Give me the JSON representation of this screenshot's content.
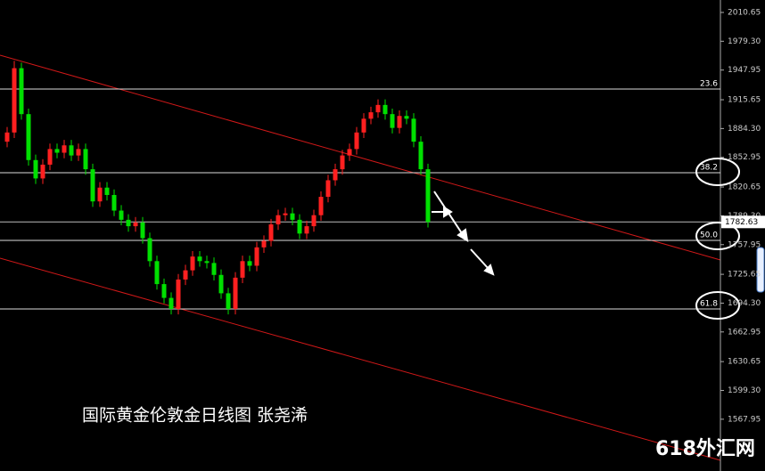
{
  "chart_data": {
    "type": "candlestick",
    "title": "国际黄金伦敦金日线图 张尧浠",
    "watermark": "618外汇网",
    "colors": {
      "up": "#ff2020",
      "down": "#00e000"
    },
    "ylim": [
      1511.6,
      2024.2
    ],
    "yticks": [
      2010.65,
      {
        "value": 1979.3,
        "label": "1979.30"
      },
      1947.95,
      1915.65,
      {
        "value": 1884.3,
        "label": "1884.30"
      },
      1852.95,
      1820.65,
      {
        "value": 1789.3,
        "label": "1789.30"
      },
      1757.95,
      1725.65,
      {
        "value": 1694.3,
        "label": "1694.30"
      },
      1662.95,
      1630.65,
      {
        "value": 1599.3,
        "label": "1599.30"
      },
      1567.95
    ],
    "fib_levels": [
      {
        "value": 1927.3,
        "label": "23.6"
      },
      {
        "value": 1836.2,
        "label": "38.2"
      },
      {
        "value": 1762.6,
        "label": "50.0"
      },
      {
        "value": 1688.0,
        "label": "61.8"
      }
    ],
    "last_price": {
      "value": 1782.63,
      "label": "1782.63"
    },
    "open": [
      1870,
      1880,
      1950,
      1900,
      1850,
      1830,
      1845,
      1862,
      1858,
      1866,
      1855,
      1862,
      1840,
      1805,
      1820,
      1812,
      1795,
      1785,
      1778,
      1782,
      1765,
      1740,
      1715,
      1700,
      1688,
      1720,
      1730,
      1745,
      1740,
      1738,
      1725,
      1705,
      1688,
      1722,
      1740,
      1735,
      1755,
      1762,
      1780,
      1790,
      1792,
      1785,
      1770,
      1778,
      1790,
      1810,
      1828,
      1840,
      1855,
      1862,
      1880,
      1895,
      1902,
      1910,
      1900,
      1885,
      1898,
      1895,
      1870,
      1840
    ],
    "high": [
      1886,
      1958,
      1956,
      1906,
      1856,
      1851,
      1868,
      1868,
      1872,
      1872,
      1868,
      1868,
      1846,
      1826,
      1826,
      1818,
      1801,
      1791,
      1788,
      1788,
      1771,
      1746,
      1721,
      1706,
      1726,
      1736,
      1751,
      1751,
      1746,
      1744,
      1731,
      1711,
      1728,
      1746,
      1746,
      1761,
      1768,
      1786,
      1796,
      1798,
      1798,
      1791,
      1784,
      1796,
      1816,
      1834,
      1846,
      1861,
      1868,
      1886,
      1901,
      1908,
      1916,
      1916,
      1906,
      1904,
      1904,
      1901,
      1876,
      1846
    ],
    "low": [
      1864,
      1874,
      1894,
      1844,
      1824,
      1824,
      1839,
      1852,
      1852,
      1849,
      1849,
      1834,
      1799,
      1799,
      1806,
      1789,
      1779,
      1772,
      1772,
      1759,
      1734,
      1709,
      1694,
      1682,
      1682,
      1714,
      1724,
      1734,
      1732,
      1719,
      1699,
      1682,
      1682,
      1716,
      1729,
      1729,
      1749,
      1756,
      1774,
      1784,
      1779,
      1764,
      1764,
      1772,
      1784,
      1804,
      1822,
      1834,
      1849,
      1856,
      1874,
      1889,
      1896,
      1894,
      1879,
      1879,
      1889,
      1864,
      1834,
      1776.63
    ],
    "close": [
      1880,
      1950,
      1900,
      1850,
      1830,
      1845,
      1862,
      1858,
      1866,
      1855,
      1862,
      1840,
      1805,
      1820,
      1812,
      1795,
      1785,
      1778,
      1782,
      1765,
      1740,
      1715,
      1700,
      1688,
      1720,
      1730,
      1745,
      1740,
      1738,
      1725,
      1705,
      1688,
      1722,
      1740,
      1735,
      1755,
      1762,
      1780,
      1790,
      1792,
      1785,
      1770,
      1778,
      1790,
      1810,
      1828,
      1840,
      1855,
      1862,
      1880,
      1895,
      1902,
      1910,
      1900,
      1885,
      1898,
      1895,
      1870,
      1840,
      1782.63
    ]
  }
}
